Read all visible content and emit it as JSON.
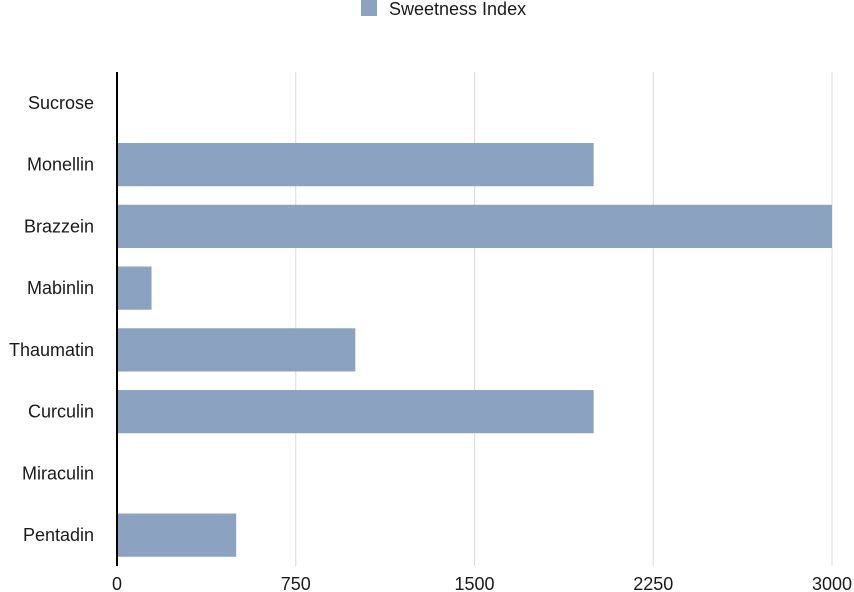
{
  "chart_data": {
    "type": "bar",
    "orientation": "horizontal",
    "categories": [
      "Sucrose",
      "Monellin",
      "Brazzein",
      "Mabinlin",
      "Thaumatin",
      "Curculin",
      "Miraculin",
      "Pentadin"
    ],
    "series": [
      {
        "name": "Sweetness Index",
        "values": [
          1,
          2000,
          3000,
          145,
          1000,
          2000,
          0,
          500
        ]
      }
    ],
    "xlim": [
      0,
      3000
    ],
    "xticks": [
      "0",
      "750",
      "1500",
      "2250",
      "3000"
    ],
    "xtick_values": [
      0,
      750,
      1500,
      2250,
      3000
    ],
    "grid": true,
    "legend_position": "top-center",
    "colors": {
      "bar": "#8ba3c0",
      "axis": "#000000",
      "grid": "#dcdcdc"
    }
  }
}
